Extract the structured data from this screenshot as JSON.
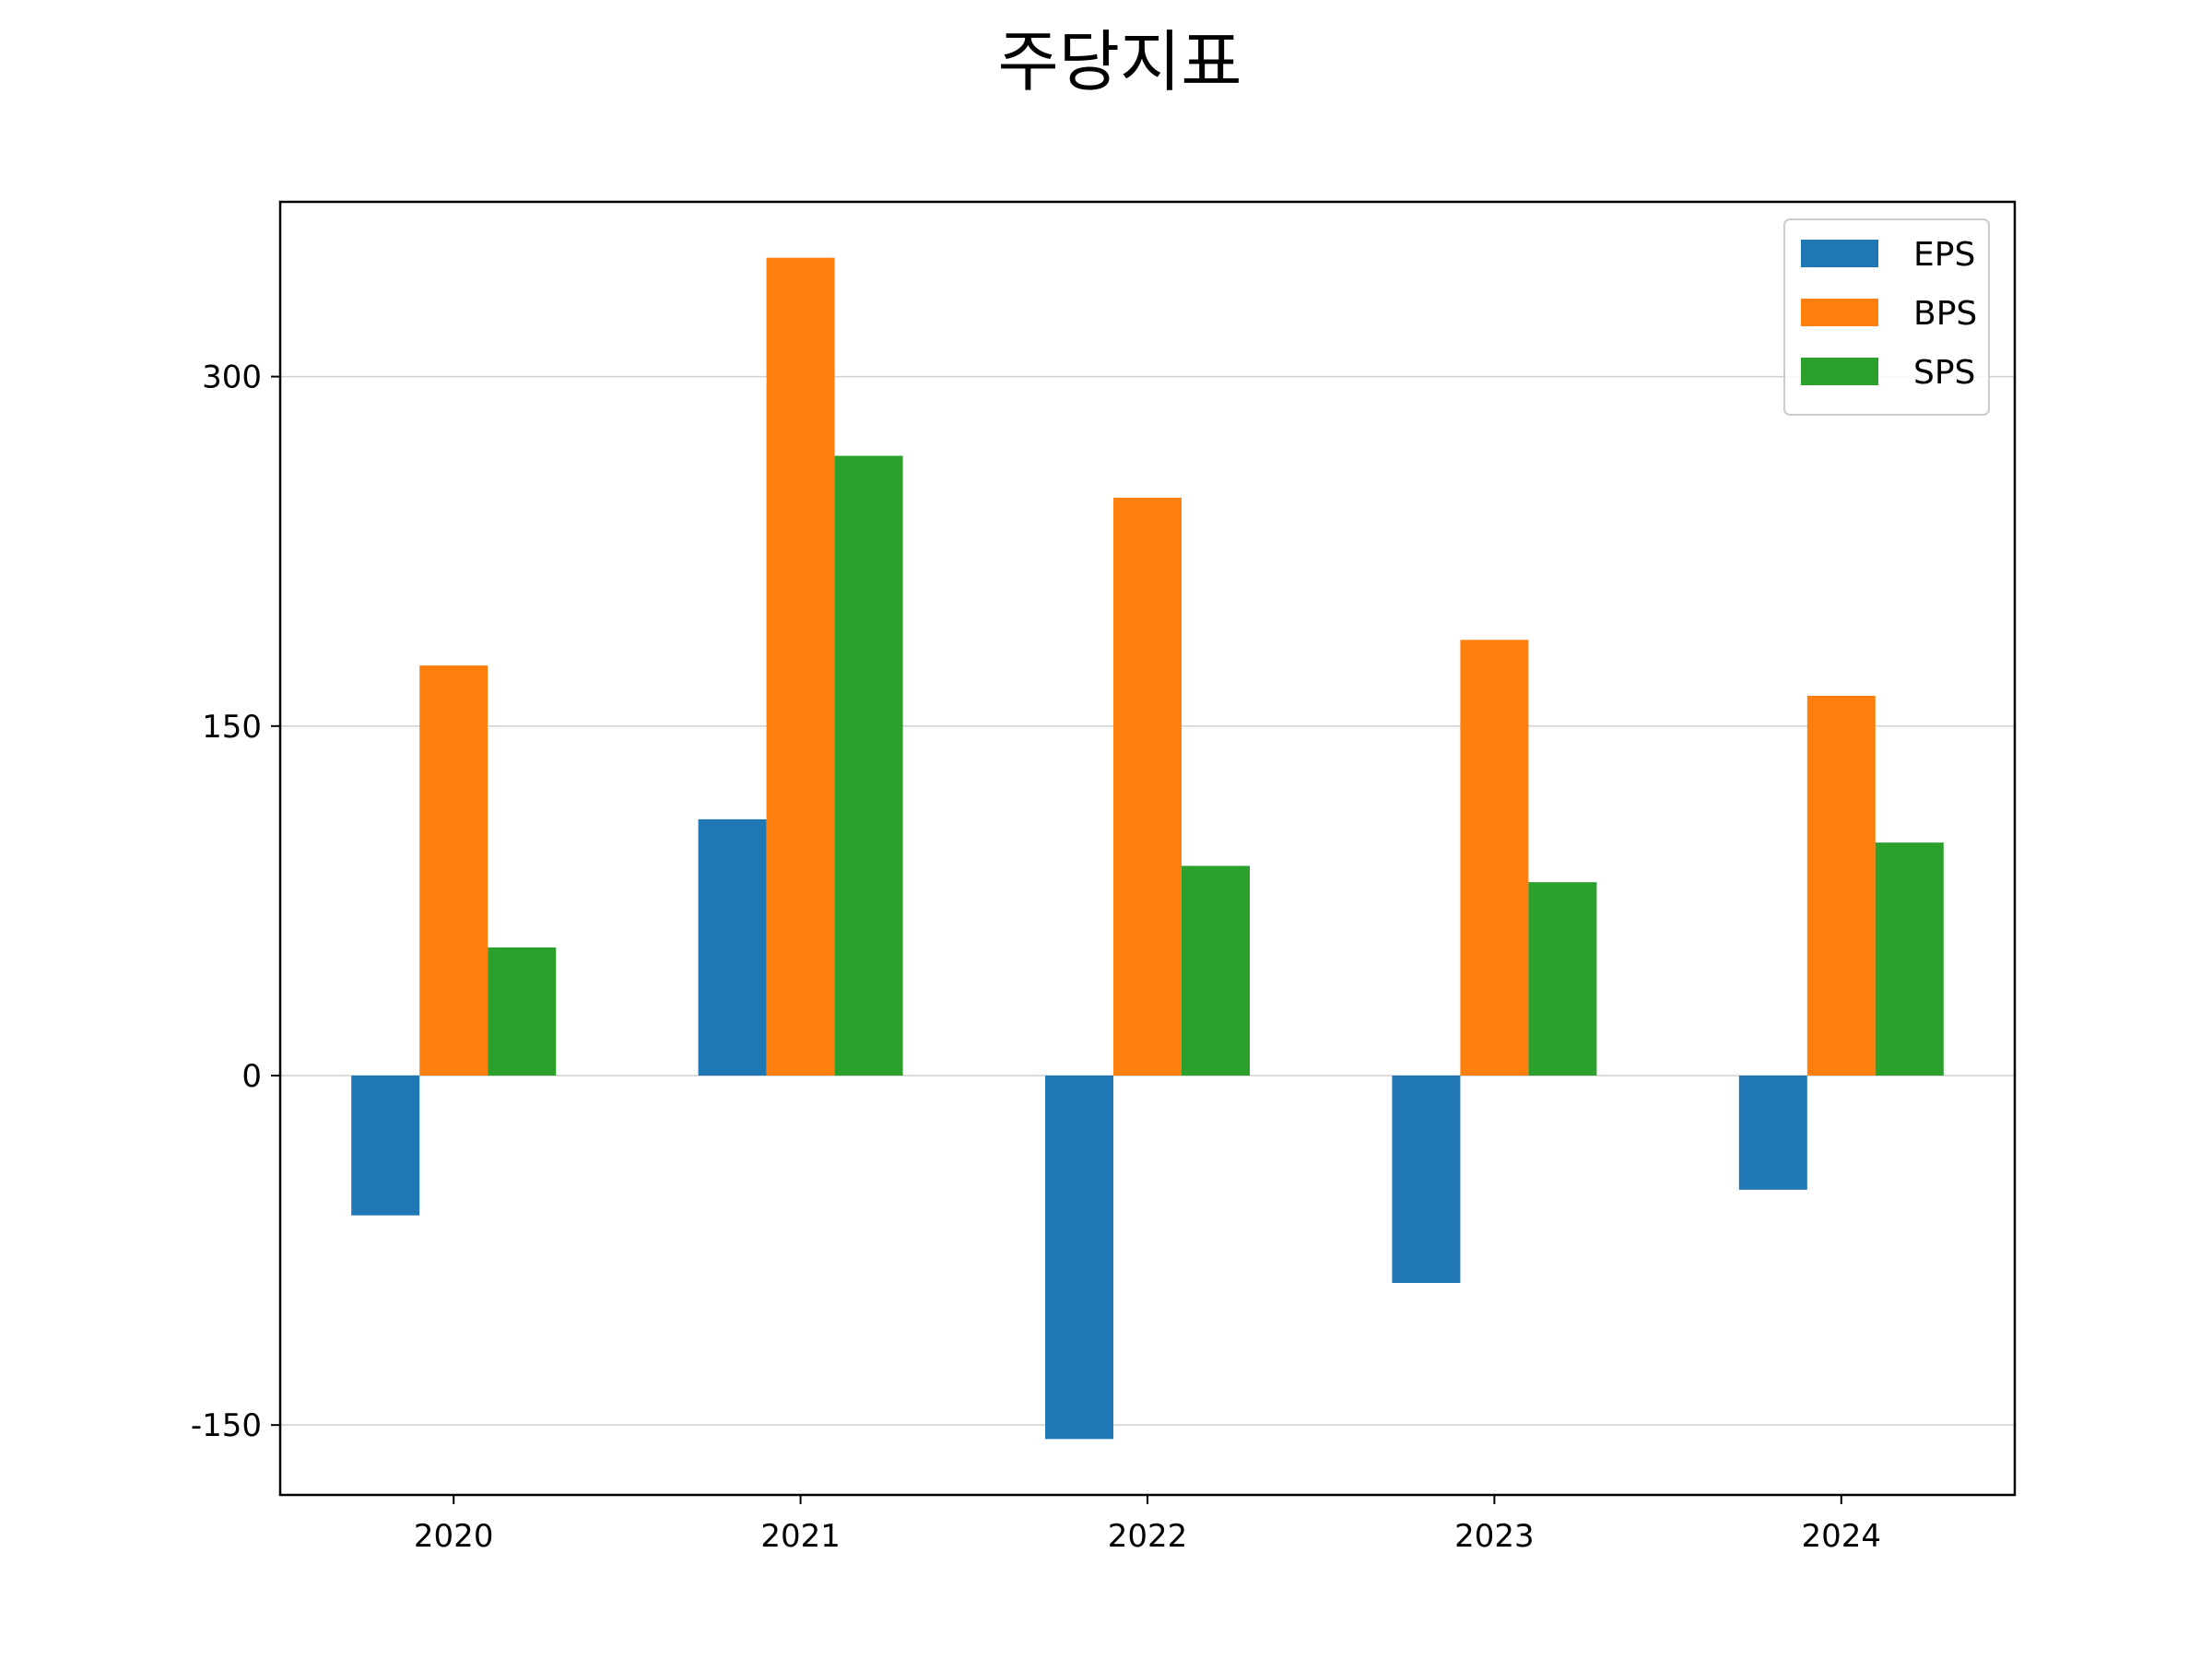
{
  "chart_data": {
    "type": "bar",
    "title": "주당지표",
    "xlabel": "",
    "ylabel": "",
    "categories": [
      "2020",
      "2021",
      "2022",
      "2023",
      "2024"
    ],
    "series": [
      {
        "name": "EPS",
        "color": "#1f77b4",
        "values": [
          -60,
          110,
          -156,
          -89,
          -49
        ]
      },
      {
        "name": "BPS",
        "color": "#ff7f0e",
        "values": [
          176,
          351,
          248,
          187,
          163
        ]
      },
      {
        "name": "SPS",
        "color": "#2ca02c",
        "values": [
          55,
          266,
          90,
          83,
          100
        ]
      }
    ],
    "ylim": [
      -180,
      375
    ],
    "yticks": [
      -150,
      0,
      150,
      300
    ],
    "ytick_labels": [
      "-150",
      "0",
      "150",
      "300"
    ],
    "grid": "horizontal",
    "legend_position": "top-right"
  }
}
